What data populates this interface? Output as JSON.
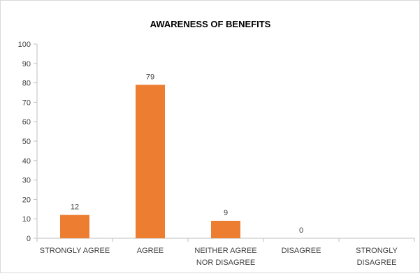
{
  "chart_data": {
    "type": "bar",
    "title": "AWARENESS OF BENEFITS",
    "categories": [
      [
        "STRONGLY AGREE"
      ],
      [
        "AGREE"
      ],
      [
        "NEITHER AGREE",
        "NOR DISAGREE"
      ],
      [
        "DISAGREE"
      ],
      [
        "STRONGLY",
        "DISAGREE"
      ]
    ],
    "values": [
      12,
      79,
      9,
      0,
      null
    ],
    "data_labels": [
      "12",
      "79",
      "9",
      "0",
      ""
    ],
    "ylim": [
      0,
      100
    ],
    "yticks": [
      0,
      10,
      20,
      30,
      40,
      50,
      60,
      70,
      80,
      90,
      100
    ],
    "xlabel": "",
    "ylabel": "",
    "grid": false,
    "legend": "none",
    "colors": {
      "bar": "#ED7D31",
      "axis": "#bfbfbf",
      "text": "#404040",
      "title": "#000000"
    }
  }
}
